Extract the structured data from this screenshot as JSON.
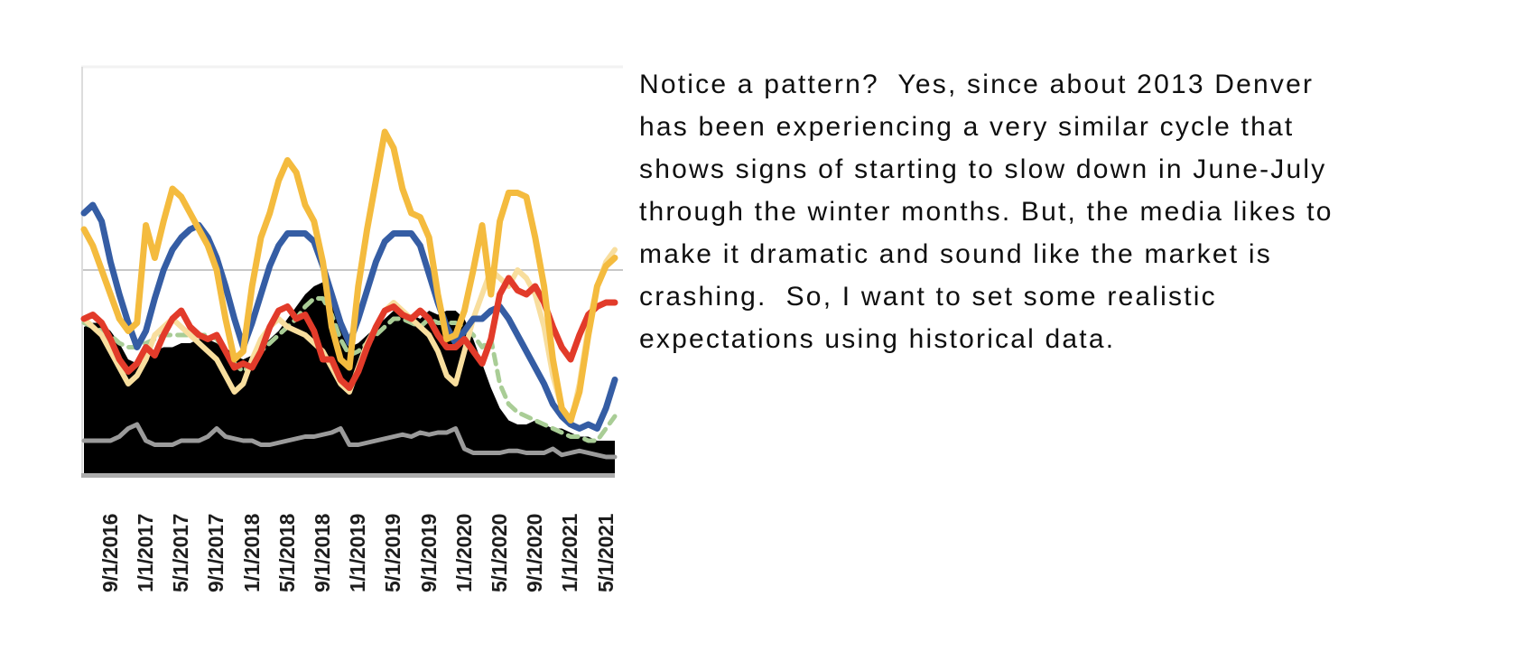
{
  "article": {
    "paragraph": "Notice a pattern?  Yes, since about 2013 Denver has been experiencing a very similar cycle that shows signs of starting to slow down in June-July through the winter months. But, the media likes to make it dramatic and sound like the market is crashing.  So, I want to set some realistic expectations using historical data."
  },
  "chart_data": {
    "type": "line",
    "title": "",
    "xlabel": "",
    "ylabel": "",
    "y_axis_labels_visible": false,
    "ylim": [
      0,
      100
    ],
    "n_points": 61,
    "x_note": "monthly points Aug-2016 through Aug-2021; tick labels every 4 months, rotated 90 degrees",
    "x_labels": [
      "9/1/2016",
      "1/1/2017",
      "5/1/2017",
      "9/1/2017",
      "1/1/2018",
      "5/1/2018",
      "9/1/2018",
      "1/1/2019",
      "5/1/2019",
      "9/1/2019",
      "1/1/2020",
      "5/1/2020",
      "9/1/2020",
      "1/1/2021",
      "5/1/2021"
    ],
    "x_label_indices": [
      1,
      5,
      9,
      13,
      17,
      21,
      25,
      29,
      33,
      37,
      41,
      45,
      49,
      53,
      57
    ],
    "grid": "two horizontal gridlines (top faint, middle gray)",
    "gridlines": [
      {
        "value": 100,
        "color": "#f2f2f2",
        "width": 3
      },
      {
        "value": 50,
        "color": "#c8c8c8",
        "width": 2
      }
    ],
    "left_axis": {
      "color": "#dcdcdc",
      "width": 2
    },
    "baseline_stripe": {
      "y_value": 458.5,
      "color": "#acacac",
      "width": 5
    },
    "legend_visible": false,
    "series": [
      {
        "name": "black-area",
        "style": "area",
        "color": "#000000",
        "values": [
          36,
          37,
          37,
          35,
          32,
          28,
          27,
          28,
          30,
          31,
          31,
          32,
          32,
          33,
          33,
          32,
          31,
          29,
          28,
          29,
          31,
          33,
          35,
          38,
          41,
          44,
          46,
          47,
          43,
          36,
          31,
          32,
          34,
          36,
          38,
          40,
          40,
          39,
          38,
          40,
          39,
          40,
          40,
          38,
          33,
          27,
          21,
          16,
          13,
          12,
          12,
          13,
          12,
          11,
          11,
          10,
          9,
          9,
          8,
          8,
          8
        ]
      },
      {
        "name": "gray-line",
        "style": "line",
        "color": "#9b9b9b",
        "width": 5,
        "values": [
          8,
          8,
          8,
          8,
          9,
          11,
          12,
          8,
          7,
          7,
          7,
          8,
          8,
          8,
          9,
          11,
          9,
          8.5,
          8,
          8,
          7,
          7,
          7.5,
          8,
          8.5,
          9,
          9,
          9.5,
          10,
          11,
          7,
          7,
          7.5,
          8,
          8.5,
          9,
          9.5,
          9,
          10,
          9.5,
          10,
          10,
          11,
          6,
          5,
          5,
          5,
          5,
          5.5,
          5.5,
          5,
          5,
          5,
          6,
          4.5,
          5,
          5.5,
          5,
          4.5,
          4,
          4
        ]
      },
      {
        "name": "green-dashed-line",
        "style": "dashed",
        "color": "#a9cd96",
        "width": 5,
        "values": [
          37,
          36,
          35,
          34,
          32,
          31,
          31,
          32,
          33,
          34,
          34,
          34,
          34,
          34,
          34,
          33,
          30,
          27,
          25,
          27,
          30,
          32,
          34,
          36,
          38,
          41,
          43,
          43,
          39,
          33,
          29,
          30,
          32,
          34,
          36,
          38,
          38,
          37,
          36,
          38,
          37,
          37,
          37,
          36,
          34,
          31,
          33,
          22,
          17,
          15,
          14,
          13,
          12,
          11,
          10,
          9,
          9,
          8,
          8,
          11,
          14
        ]
      },
      {
        "name": "pale-gold-line",
        "style": "line",
        "color": "#f8de9e",
        "width": 6,
        "values": [
          38,
          36,
          34,
          30,
          26,
          22,
          24,
          28,
          34,
          36,
          38,
          36,
          34,
          32,
          30,
          28,
          24,
          20,
          22,
          28,
          33,
          36,
          38,
          36,
          35,
          34,
          32,
          30,
          26,
          22,
          20,
          26,
          32,
          36,
          40,
          42,
          40,
          38,
          36,
          34,
          30,
          24,
          22,
          30,
          38,
          44,
          50,
          48,
          46,
          50,
          48,
          44,
          36,
          24,
          16,
          12,
          22,
          36,
          46,
          52,
          55
        ]
      },
      {
        "name": "blue-line",
        "style": "line",
        "color": "#355da4",
        "width": 7,
        "values": [
          64,
          66,
          62,
          52,
          44,
          37,
          31,
          35,
          43,
          50,
          55,
          58,
          60,
          61,
          58,
          53,
          46,
          38,
          31,
          37,
          44,
          51,
          56,
          59,
          59,
          59,
          57,
          51,
          44,
          37,
          32,
          38,
          45,
          52,
          57,
          59,
          59,
          59,
          56,
          49,
          42,
          36,
          32,
          35,
          38,
          38,
          40,
          41,
          38,
          34,
          30,
          26,
          22,
          17,
          14,
          12,
          11,
          12,
          11,
          16,
          23
        ]
      },
      {
        "name": "red-line",
        "style": "line",
        "color": "#e23b2a",
        "width": 7,
        "values": [
          38,
          39,
          37,
          33,
          28,
          25,
          27,
          31,
          29,
          34,
          38,
          40,
          36,
          34,
          33,
          34,
          30,
          26,
          27,
          26,
          30,
          36,
          40,
          41,
          38,
          39,
          35,
          28,
          28,
          23,
          21,
          25,
          31,
          36,
          40,
          41,
          39,
          38,
          40,
          38,
          34,
          31,
          31,
          33,
          30,
          27,
          33,
          44,
          48,
          45,
          44,
          46,
          42,
          36,
          31,
          28,
          34,
          39,
          41,
          42,
          42
        ]
      },
      {
        "name": "gold-line",
        "style": "line",
        "color": "#f4bb3e",
        "width": 7,
        "values": [
          60,
          56,
          50,
          44,
          38,
          35,
          37,
          61,
          53,
          62,
          70,
          68,
          64,
          60,
          56,
          50,
          38,
          28,
          30,
          46,
          58,
          64,
          72,
          77,
          74,
          66,
          62,
          52,
          36,
          28,
          26,
          46,
          60,
          72,
          84,
          80,
          70,
          64,
          63,
          58,
          44,
          33,
          34,
          40,
          50,
          61,
          44,
          62,
          69,
          69,
          68,
          58,
          46,
          28,
          16,
          13,
          20,
          34,
          46,
          51,
          53
        ]
      }
    ]
  }
}
